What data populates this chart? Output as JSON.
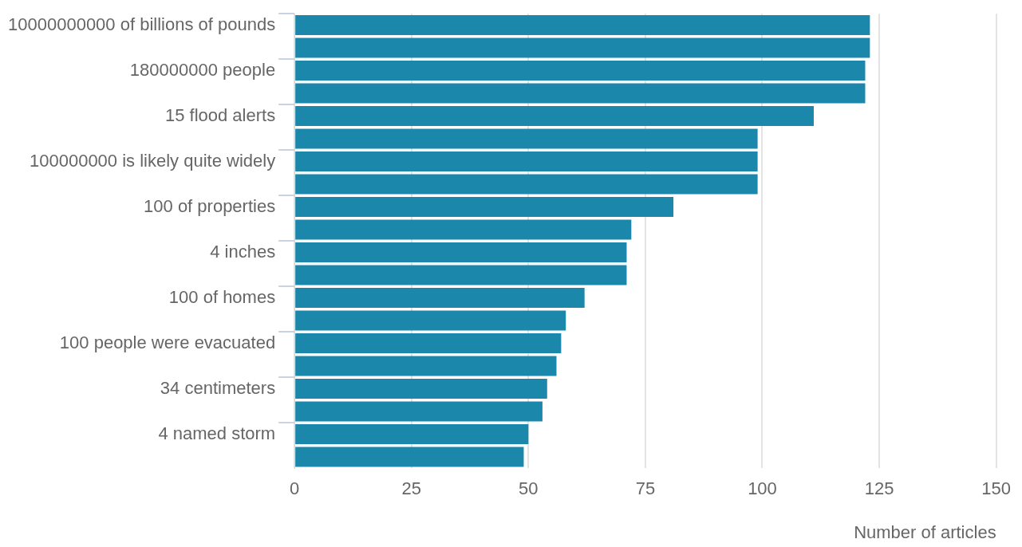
{
  "chart_data": {
    "type": "bar",
    "orientation": "horizontal",
    "xlabel": "Number of articles",
    "categories": [
      "10000000000 of billions of pounds",
      null,
      "180000000 people",
      null,
      "15 flood alerts",
      null,
      "100000000 is likely quite widely",
      null,
      "100 of properties",
      null,
      "4 inches",
      null,
      "100 of homes",
      null,
      "100 people were evacuated",
      null,
      "34 centimeters",
      null,
      "4 named storm",
      null
    ],
    "values": [
      123,
      123,
      122,
      122,
      111,
      99,
      99,
      99,
      81,
      72,
      71,
      71,
      62,
      58,
      57,
      56,
      54,
      53,
      50,
      49
    ],
    "color": "#1a87ab",
    "xlim": [
      0,
      150
    ],
    "xticks": [
      0,
      25,
      50,
      75,
      100,
      125,
      150
    ],
    "grid": "x",
    "legend": false
  }
}
